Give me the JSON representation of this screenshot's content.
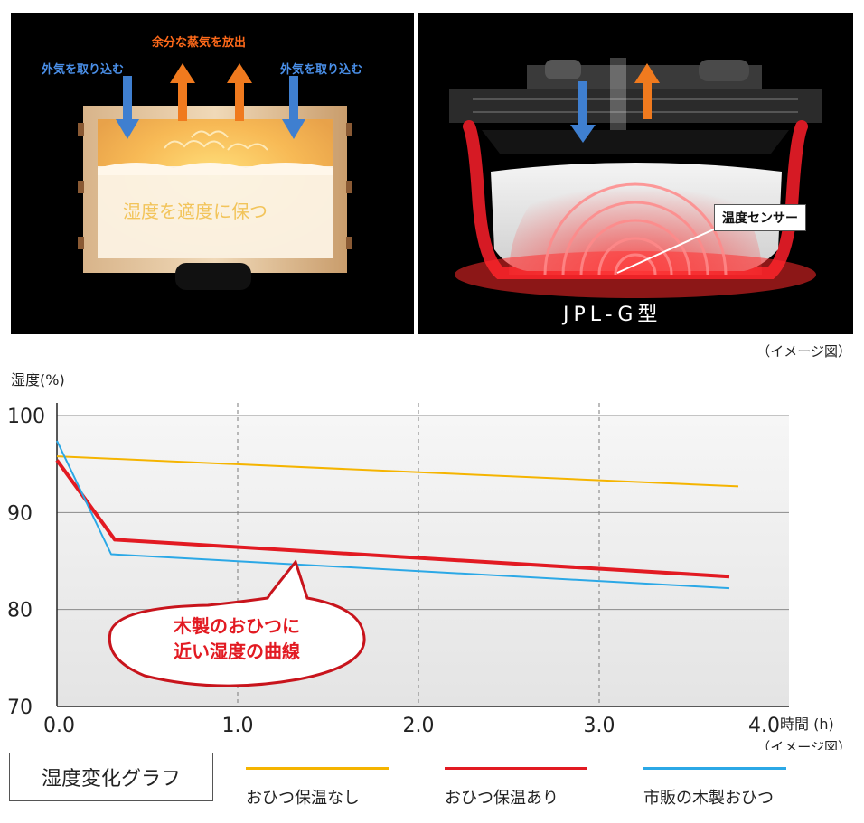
{
  "illustration": {
    "left": {
      "label_intake_left": "外気を取り込む",
      "label_release": "余分な蒸気を放出",
      "label_intake_right": "外気を取り込む",
      "label_inside": "湿度を適度に保つ",
      "colors": {
        "intake_arrow": "#3f7fd0",
        "release_arrow": "#f07a1e",
        "intake_text": "#4a8fe8",
        "release_text": "#ff6a1a"
      }
    },
    "right": {
      "sensor_label": "温度センサー",
      "model_label": "JPL-G型"
    },
    "caption": "（イメージ図）"
  },
  "chart_data": {
    "type": "line",
    "ylabel": "湿度(%)",
    "xlabel": "時間 (h)",
    "x_ticks": [
      "0.0",
      "1.0",
      "2.0",
      "3.0",
      "4.0"
    ],
    "y_ticks": [
      "70",
      "80",
      "90",
      "100"
    ],
    "xlim": [
      0,
      4
    ],
    "ylim": [
      70,
      100
    ],
    "caption": "（イメージ図）",
    "annotation": {
      "line1": "木製のおひつに",
      "line2": "近い湿度の曲線"
    },
    "series": [
      {
        "name": "おひつ保温なし",
        "color": "#f5b400",
        "points": [
          [
            0.0,
            95.8
          ],
          [
            3.77,
            92.7
          ]
        ]
      },
      {
        "name": "おひつ保温あり",
        "color": "#e21a22",
        "points": [
          [
            0.0,
            95.4
          ],
          [
            0.32,
            87.2
          ],
          [
            3.72,
            83.4
          ]
        ]
      },
      {
        "name": "市販の木製おひつ",
        "color": "#2ba8e6",
        "points": [
          [
            0.0,
            97.4
          ],
          [
            0.3,
            85.7
          ],
          [
            3.72,
            82.2
          ]
        ]
      }
    ]
  },
  "legend": {
    "title": "湿度変化グラフ",
    "items": [
      {
        "label": "おひつ保温なし",
        "color": "#f5b400"
      },
      {
        "label": "おひつ保温あり",
        "color": "#e21a22"
      },
      {
        "label": "市販の木製おひつ",
        "color": "#2ba8e6"
      }
    ]
  }
}
